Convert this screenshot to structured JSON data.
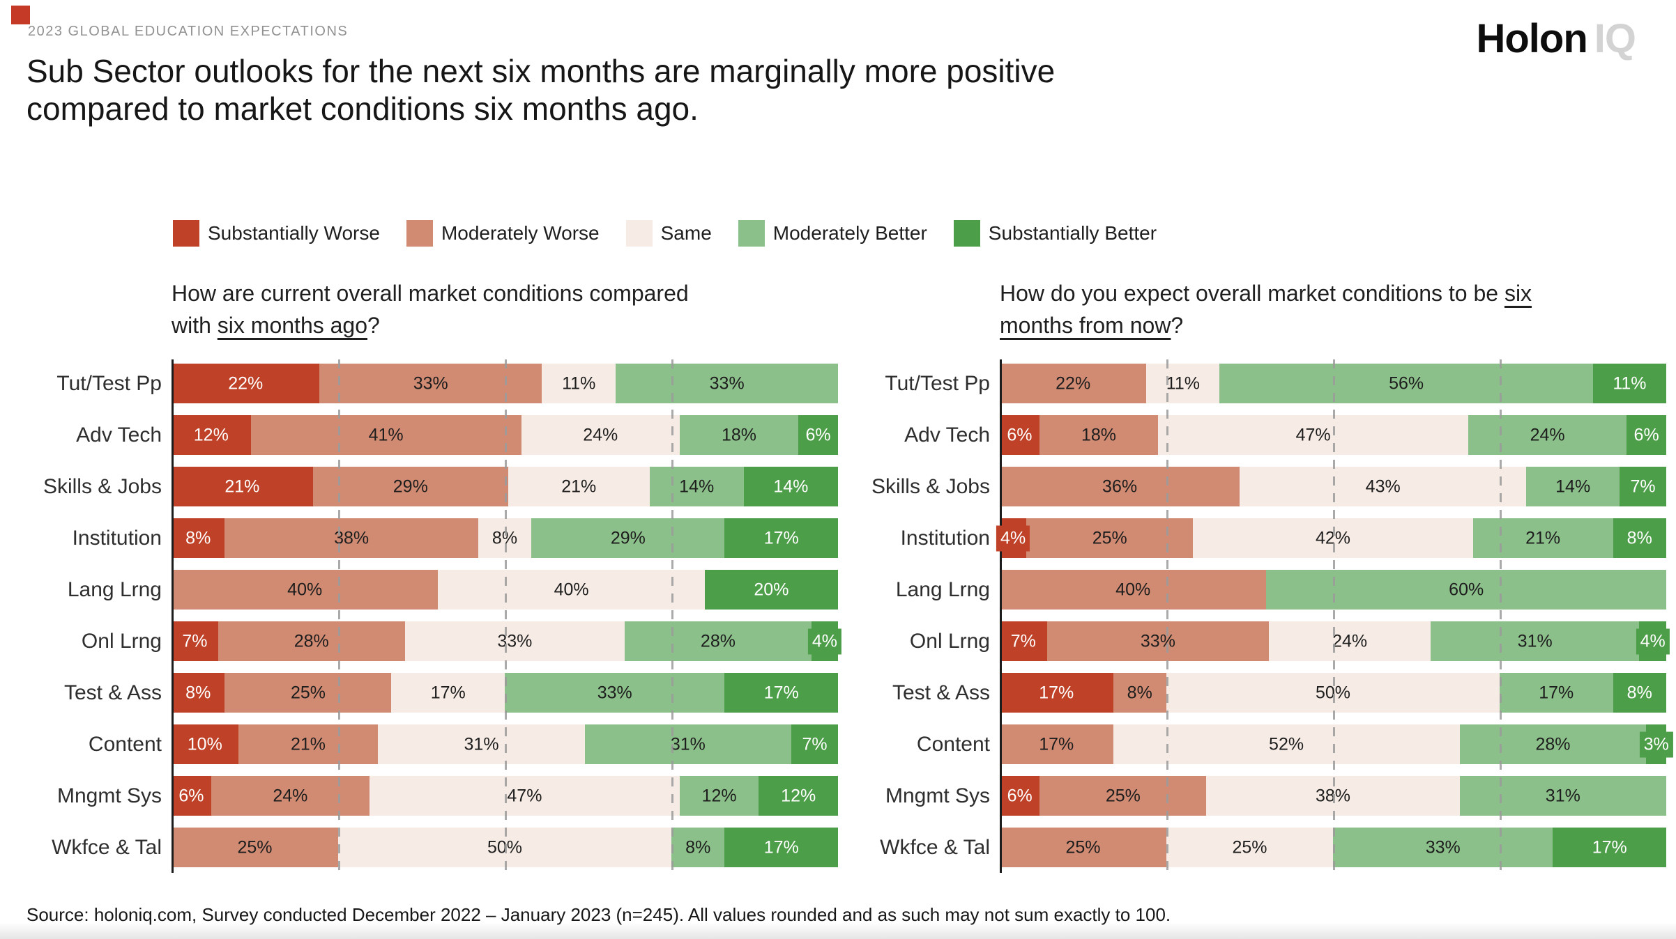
{
  "header": {
    "kicker": "2023 GLOBAL EDUCATION EXPECTATIONS",
    "title": "Sub Sector outlooks for the next six months are marginally more positive compared to market conditions six months ago.",
    "logo": {
      "primary": "Holon",
      "secondary": "IQ"
    }
  },
  "legend": [
    {
      "label": "Substantially Worse",
      "color": "#bf4127"
    },
    {
      "label": "Moderately Worse",
      "color": "#d18b73"
    },
    {
      "label": "Same",
      "color": "#f7ece5"
    },
    {
      "label": "Moderately Better",
      "color": "#8cc08a"
    },
    {
      "label": "Substantially Better",
      "color": "#4d9e49"
    }
  ],
  "chart_data": [
    {
      "type": "bar",
      "orientation": "horizontal",
      "stacked": true,
      "normalized_to_100": true,
      "unit": "%",
      "question": {
        "prefix": "How are current overall market conditions compared with ",
        "underlined": "six months ago",
        "suffix": "?"
      },
      "categories": [
        "Tut/Test Pp",
        "Adv Tech",
        "Skills & Jobs",
        "Institution",
        "Lang Lrng",
        "Onl Lrng",
        "Test & Ass",
        "Content",
        "Mngmt Sys",
        "Wkfce & Tal"
      ],
      "series": [
        {
          "name": "Substantially Worse",
          "color": "#bf4127",
          "label_color": "#ffffff",
          "values": [
            22,
            12,
            21,
            8,
            0,
            7,
            8,
            10,
            6,
            0
          ]
        },
        {
          "name": "Moderately Worse",
          "color": "#d18b73",
          "label_color": "#1d1d1d",
          "values": [
            33,
            41,
            29,
            38,
            40,
            28,
            25,
            21,
            24,
            25
          ]
        },
        {
          "name": "Same",
          "color": "#f7ece5",
          "label_color": "#1d1d1d",
          "values": [
            11,
            24,
            21,
            8,
            40,
            33,
            17,
            31,
            47,
            50
          ]
        },
        {
          "name": "Moderately Better",
          "color": "#8cc08a",
          "label_color": "#1d1d1d",
          "values": [
            33,
            18,
            14,
            29,
            0,
            28,
            33,
            31,
            12,
            8
          ]
        },
        {
          "name": "Substantially Better",
          "color": "#4d9e49",
          "label_color": "#ffffff",
          "values": [
            0,
            6,
            14,
            17,
            20,
            4,
            17,
            7,
            12,
            17
          ]
        }
      ],
      "gridlines_pct": [
        25,
        50,
        75
      ]
    },
    {
      "type": "bar",
      "orientation": "horizontal",
      "stacked": true,
      "normalized_to_100": true,
      "unit": "%",
      "question": {
        "prefix": "How do you expect overall market conditions to be ",
        "underlined": "six months from now",
        "suffix": "?"
      },
      "categories": [
        "Tut/Test Pp",
        "Adv Tech",
        "Skills & Jobs",
        "Institution",
        "Lang Lrng",
        "Onl Lrng",
        "Test & Ass",
        "Content",
        "Mngmt Sys",
        "Wkfce & Tal"
      ],
      "series": [
        {
          "name": "Substantially Worse",
          "color": "#bf4127",
          "label_color": "#ffffff",
          "values": [
            0,
            6,
            0,
            4,
            0,
            7,
            17,
            0,
            6,
            0
          ]
        },
        {
          "name": "Moderately Worse",
          "color": "#d18b73",
          "label_color": "#1d1d1d",
          "values": [
            22,
            18,
            36,
            25,
            40,
            33,
            8,
            17,
            25,
            25
          ]
        },
        {
          "name": "Same",
          "color": "#f7ece5",
          "label_color": "#1d1d1d",
          "values": [
            11,
            47,
            43,
            42,
            0,
            24,
            50,
            52,
            38,
            25
          ]
        },
        {
          "name": "Moderately Better",
          "color": "#8cc08a",
          "label_color": "#1d1d1d",
          "values": [
            56,
            24,
            14,
            21,
            60,
            31,
            17,
            28,
            31,
            33
          ]
        },
        {
          "name": "Substantially Better",
          "color": "#4d9e49",
          "label_color": "#ffffff",
          "values": [
            11,
            6,
            7,
            8,
            0,
            4,
            8,
            3,
            0,
            17
          ]
        }
      ],
      "gridlines_pct": [
        25,
        50,
        75
      ]
    }
  ],
  "source": "Source: holoniq.com, Survey conducted December 2022 – January 2023 (n=245). All values rounded and as such may not sum exactly to 100."
}
